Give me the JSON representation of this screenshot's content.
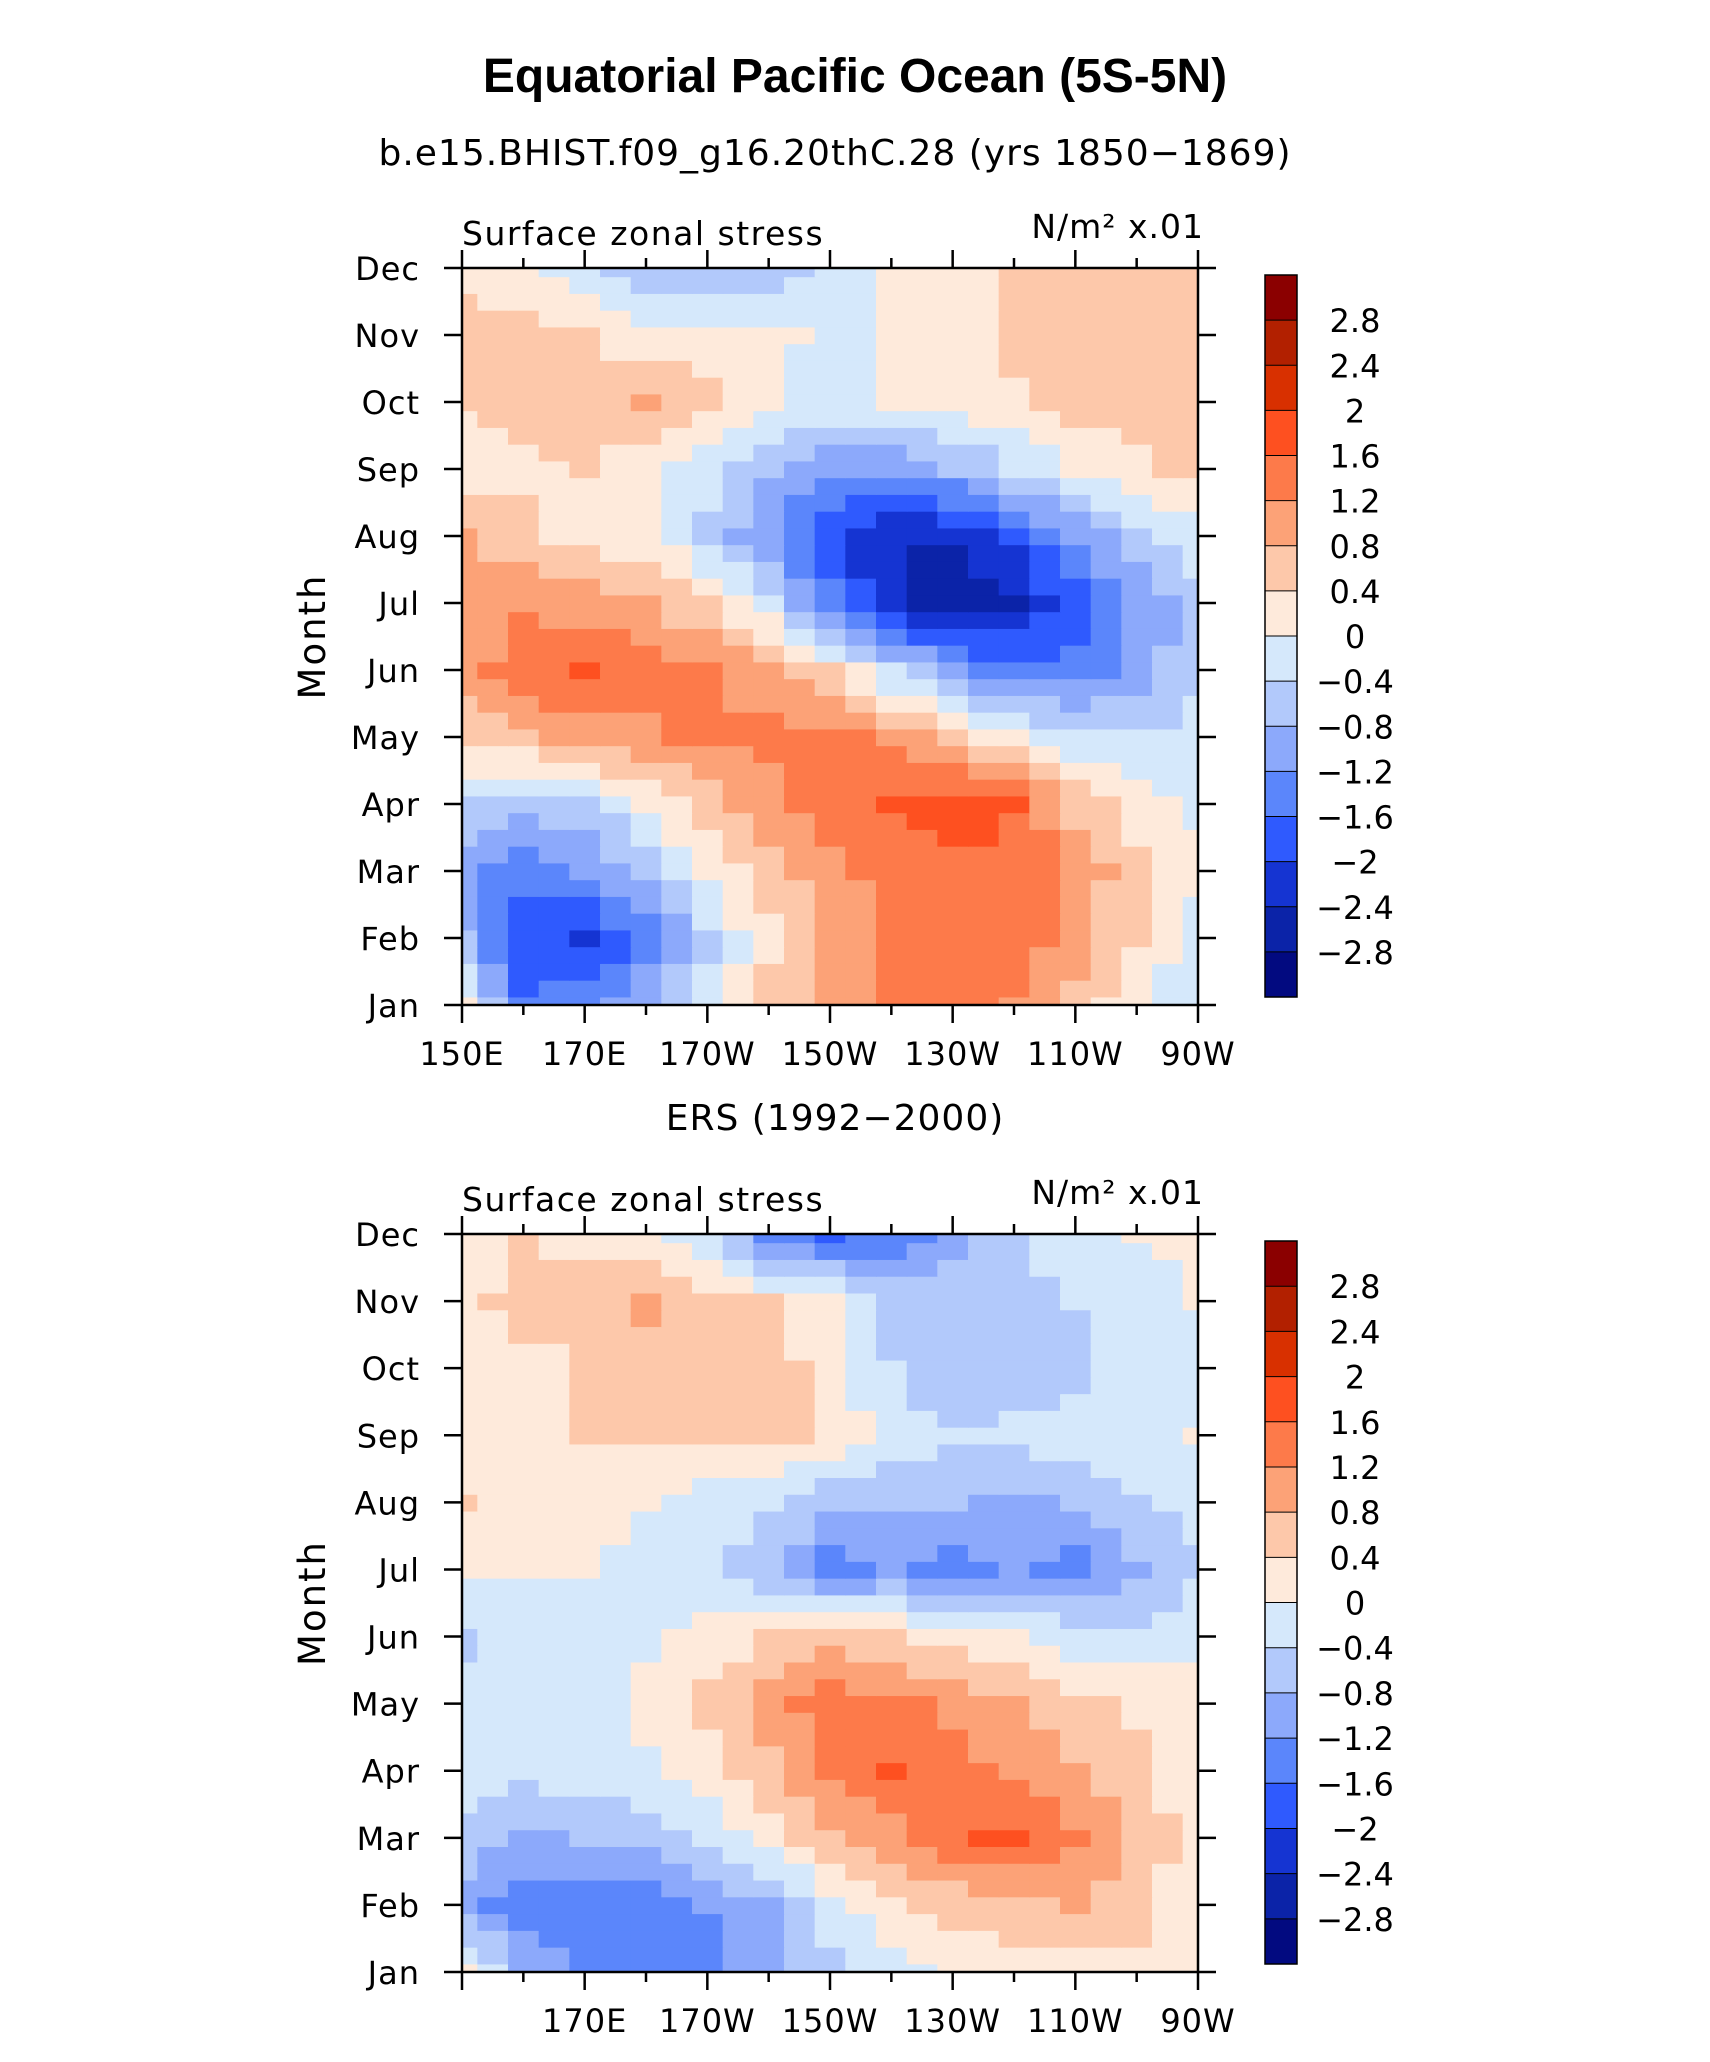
{
  "figure": {
    "title": "Equatorial Pacific Ocean (5S-5N)",
    "background": "#ffffff"
  },
  "colorbar": {
    "levels": [
      "2.8",
      "2.4",
      "2",
      "1.6",
      "1.2",
      "0.8",
      "0.4",
      "0",
      "−0.4",
      "−0.8",
      "−1.2",
      "−1.6",
      "−2",
      "−2.4",
      "−2.8"
    ],
    "colors": [
      "#8b0000",
      "#b22000",
      "#d83000",
      "#fe5020",
      "#fd7a4a",
      "#fca277",
      "#fdc8aa",
      "#feeadb",
      "#d5e8fb",
      "#b2c9fb",
      "#8ca9fb",
      "#5b86fb",
      "#2f5afe",
      "#1534d2",
      "#0b23a8",
      "#020a80"
    ]
  },
  "chart_data": [
    {
      "type": "heatmap",
      "subtitle": "b.e15.BHIST.f09_g16.20thC.28 (yrs 1850−1869)",
      "left_label": "Surface zonal stress",
      "right_label": "N/m² x.01",
      "ylabel": "Month",
      "y_categories": [
        "Jan",
        "Feb",
        "Mar",
        "Apr",
        "May",
        "Jun",
        "Jul",
        "Aug",
        "Sep",
        "Oct",
        "Nov",
        "Dec"
      ],
      "x_ticks": [
        "150E",
        "170E",
        "170W",
        "150W",
        "130W",
        "110W",
        "90W"
      ],
      "xlim": [
        150,
        270
      ],
      "grid_x": [
        150,
        160,
        170,
        180,
        190,
        200,
        210,
        220,
        230,
        240,
        250,
        260,
        270
      ],
      "values": [
        [
          0.0,
          -1.6,
          -1.3,
          -0.9,
          -0.2,
          0.5,
          0.8,
          1.2,
          1.3,
          1.1,
          0.6,
          0.0,
          -0.3
        ],
        [
          -0.8,
          -1.9,
          -2.1,
          -1.5,
          -0.5,
          0.3,
          0.9,
          1.2,
          1.4,
          1.5,
          1.1,
          0.4,
          -0.2
        ],
        [
          -1.1,
          -1.4,
          -1.2,
          -0.7,
          0.1,
          0.6,
          1.1,
          1.3,
          1.5,
          1.5,
          1.1,
          0.5,
          0.1
        ],
        [
          -0.5,
          -0.7,
          -0.5,
          0.0,
          0.6,
          1.0,
          1.4,
          1.7,
          1.8,
          1.6,
          0.7,
          0.2,
          -0.1
        ],
        [
          0.6,
          0.7,
          1.0,
          1.1,
          1.3,
          1.3,
          1.3,
          1.1,
          0.6,
          0.1,
          -0.3,
          -0.4,
          -0.2
        ],
        [
          0.9,
          1.5,
          1.6,
          1.4,
          1.2,
          0.9,
          0.4,
          -0.4,
          -1.1,
          -1.5,
          -1.5,
          -1.0,
          -0.5
        ],
        [
          0.8,
          1.1,
          1.0,
          0.8,
          0.4,
          -0.3,
          -1.4,
          -2.4,
          -2.7,
          -2.5,
          -1.8,
          -1.2,
          -0.6
        ],
        [
          0.8,
          0.5,
          0.2,
          0.1,
          -0.5,
          -1.2,
          -2.0,
          -2.4,
          -2.4,
          -1.9,
          -1.1,
          -0.6,
          -0.2
        ],
        [
          0.0,
          0.3,
          0.4,
          0.1,
          -0.3,
          -0.8,
          -1.2,
          -1.2,
          -0.8,
          -0.4,
          0.0,
          0.3,
          0.5
        ],
        [
          0.5,
          0.6,
          0.6,
          0.8,
          0.5,
          0.0,
          -0.1,
          0.0,
          0.1,
          0.3,
          0.6,
          0.7,
          0.6
        ],
        [
          0.6,
          0.6,
          0.4,
          0.1,
          0.2,
          0.1,
          -0.1,
          0.0,
          0.2,
          0.5,
          0.7,
          0.7,
          0.6
        ],
        [
          0.2,
          0.1,
          -0.4,
          -0.6,
          -0.8,
          -0.7,
          -0.3,
          0.0,
          0.2,
          0.4,
          0.5,
          0.5,
          0.4
        ]
      ]
    },
    {
      "type": "heatmap",
      "subtitle": "ERS (1992−2000)",
      "left_label": "Surface zonal stress",
      "right_label": "N/m² x.01",
      "ylabel": "Month",
      "y_categories": [
        "Jan",
        "Feb",
        "Mar",
        "Apr",
        "May",
        "Jun",
        "Jul",
        "Aug",
        "Sep",
        "Oct",
        "Nov",
        "Dec"
      ],
      "x_ticks": [
        "170E",
        "170W",
        "150W",
        "130W",
        "110W",
        "90W"
      ],
      "xlim": [
        150,
        270
      ],
      "grid_x": [
        150,
        160,
        170,
        180,
        190,
        200,
        210,
        220,
        230,
        240,
        250,
        260,
        270
      ],
      "values": [
        [
          0.1,
          -0.9,
          -1.3,
          -1.3,
          -1.4,
          -1.0,
          -0.6,
          -0.2,
          0.1,
          0.2,
          0.1,
          0.2,
          0.0
        ],
        [
          -1.1,
          -1.3,
          -1.5,
          -1.5,
          -1.2,
          -0.9,
          -0.2,
          0.3,
          0.5,
          0.6,
          0.8,
          0.6,
          0.1
        ],
        [
          -0.5,
          -0.9,
          -0.8,
          -0.6,
          -0.3,
          0.2,
          0.7,
          1.0,
          1.5,
          1.7,
          1.3,
          0.7,
          0.2
        ],
        [
          -0.2,
          -0.3,
          -0.2,
          -0.1,
          0.2,
          0.7,
          1.3,
          1.7,
          1.4,
          1.1,
          0.8,
          0.5,
          0.2
        ],
        [
          -0.2,
          -0.3,
          -0.2,
          0.1,
          0.5,
          1.0,
          1.4,
          1.3,
          1.1,
          0.8,
          0.5,
          0.3,
          0.1
        ],
        [
          -0.5,
          -0.3,
          -0.2,
          -0.1,
          0.1,
          0.4,
          0.7,
          0.5,
          0.2,
          0.0,
          -0.2,
          -0.3,
          -0.1
        ],
        [
          0.0,
          0.0,
          0.0,
          -0.1,
          -0.3,
          -0.7,
          -1.4,
          -1.2,
          -1.4,
          -1.1,
          -1.4,
          -0.9,
          -0.5
        ],
        [
          0.4,
          0.3,
          0.2,
          0.0,
          -0.2,
          -0.4,
          -0.7,
          -0.8,
          -0.8,
          -0.9,
          -0.8,
          -0.5,
          -0.2
        ],
        [
          0.3,
          0.3,
          0.4,
          0.4,
          0.6,
          0.5,
          0.3,
          -0.2,
          -0.3,
          -0.3,
          -0.2,
          -0.1,
          0.0
        ],
        [
          0.3,
          0.3,
          0.4,
          0.5,
          0.6,
          0.6,
          0.2,
          -0.4,
          -0.8,
          -0.7,
          -0.5,
          -0.3,
          -0.1
        ],
        [
          0.3,
          0.5,
          0.5,
          0.9,
          0.6,
          0.4,
          0.2,
          -0.5,
          -0.6,
          -0.5,
          -0.4,
          -0.2,
          0.0
        ],
        [
          0.3,
          0.4,
          0.3,
          0.2,
          -0.3,
          -1.3,
          -1.7,
          -1.5,
          -1.0,
          -0.5,
          -0.2,
          0.0,
          0.1
        ]
      ]
    }
  ]
}
